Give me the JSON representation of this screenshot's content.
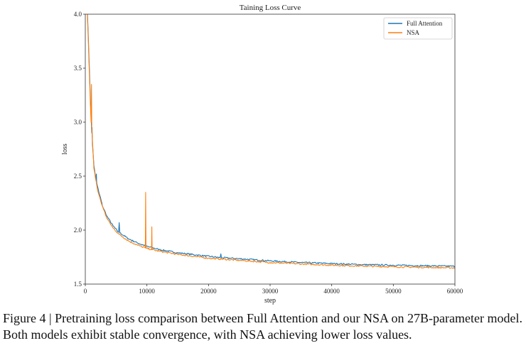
{
  "chart_data": {
    "type": "line",
    "title": "Taining Loss Curve",
    "xlabel": "step",
    "ylabel": "loss",
    "xlim": [
      0,
      60000
    ],
    "ylim": [
      1.5,
      4.0
    ],
    "xticks": [
      0,
      10000,
      20000,
      30000,
      40000,
      50000,
      60000
    ],
    "xtick_labels": [
      "0",
      "10000",
      "20000",
      "30000",
      "40000",
      "50000",
      "60000"
    ],
    "yticks": [
      1.5,
      2.0,
      2.5,
      3.0,
      3.5,
      4.0
    ],
    "ytick_labels": [
      "1.5",
      "2.0",
      "2.5",
      "3.0",
      "3.5",
      "4.0"
    ],
    "grid": false,
    "legend_position": "top-right",
    "series": [
      {
        "name": "Full Attention",
        "color": "#1f77b4",
        "points": [
          [
            0,
            4.6
          ],
          [
            600,
            3.6
          ],
          [
            900,
            3.1
          ],
          [
            1050,
            2.9
          ],
          [
            1100,
            2.95
          ],
          [
            1150,
            2.8
          ],
          [
            1400,
            2.6
          ],
          [
            1700,
            2.47
          ],
          [
            1800,
            2.52
          ],
          [
            1850,
            2.44
          ],
          [
            2200,
            2.35
          ],
          [
            2600,
            2.27
          ],
          [
            2700,
            2.25
          ],
          [
            2750,
            2.23
          ],
          [
            3500,
            2.13
          ],
          [
            4500,
            2.04
          ],
          [
            5400,
            1.98
          ],
          [
            5500,
            2.07
          ],
          [
            5600,
            1.975
          ],
          [
            7000,
            1.92
          ],
          [
            8500,
            1.88
          ],
          [
            10000,
            1.85
          ],
          [
            12000,
            1.82
          ],
          [
            15000,
            1.79
          ],
          [
            18000,
            1.77
          ],
          [
            21900,
            1.745
          ],
          [
            22000,
            1.78
          ],
          [
            22100,
            1.745
          ],
          [
            25000,
            1.735
          ],
          [
            30000,
            1.715
          ],
          [
            35000,
            1.7
          ],
          [
            40000,
            1.69
          ],
          [
            45000,
            1.68
          ],
          [
            50000,
            1.675
          ],
          [
            55000,
            1.67
          ],
          [
            60000,
            1.665
          ]
        ]
      },
      {
        "name": "NSA",
        "color": "#ff7f0e",
        "points": [
          [
            0,
            4.6
          ],
          [
            600,
            3.55
          ],
          [
            900,
            3.05
          ],
          [
            950,
            3.0
          ],
          [
            1000,
            3.35
          ],
          [
            1050,
            2.95
          ],
          [
            1400,
            2.57
          ],
          [
            2000,
            2.37
          ],
          [
            2600,
            2.25
          ],
          [
            3500,
            2.11
          ],
          [
            4500,
            2.02
          ],
          [
            5500,
            1.96
          ],
          [
            7000,
            1.9
          ],
          [
            8500,
            1.86
          ],
          [
            9750,
            1.835
          ],
          [
            9800,
            2.35
          ],
          [
            9850,
            1.833
          ],
          [
            10750,
            1.82
          ],
          [
            10800,
            2.03
          ],
          [
            10850,
            1.818
          ],
          [
            12000,
            1.805
          ],
          [
            15000,
            1.775
          ],
          [
            20000,
            1.74
          ],
          [
            25000,
            1.72
          ],
          [
            30000,
            1.7
          ],
          [
            35000,
            1.687
          ],
          [
            40000,
            1.675
          ],
          [
            45000,
            1.667
          ],
          [
            50000,
            1.66
          ],
          [
            55000,
            1.655
          ],
          [
            60000,
            1.65
          ]
        ]
      }
    ]
  },
  "caption": "Figure 4 | Pretraining loss comparison between Full Attention and our NSA on 27B-parameter model. Both models exhibit stable convergence, with NSA achieving lower loss values."
}
